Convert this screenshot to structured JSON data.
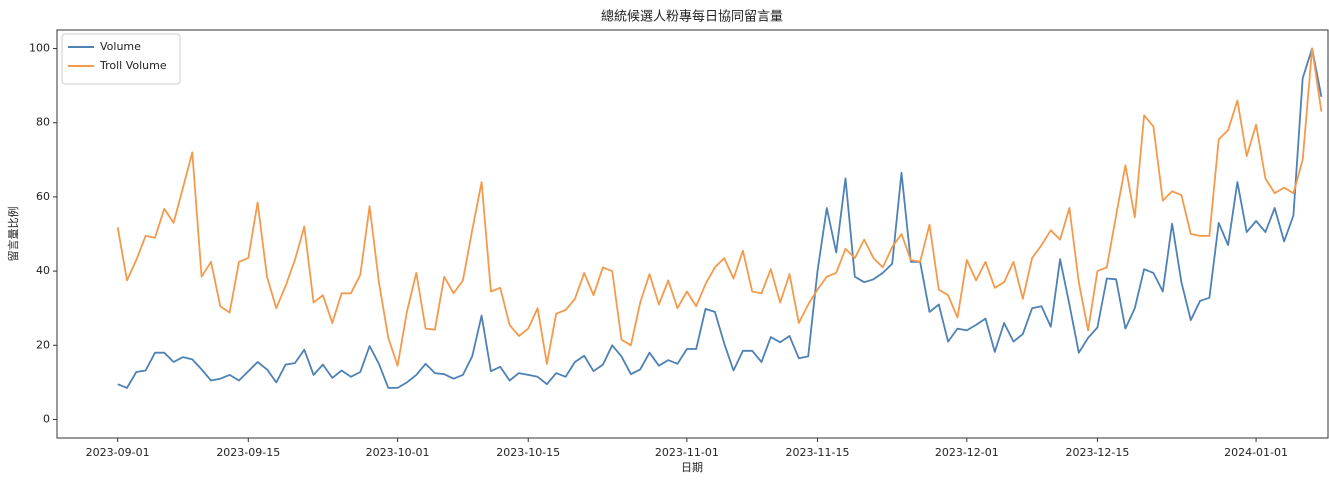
{
  "chart_data": {
    "type": "line",
    "title": "總統候選人粉專每日協同留言量",
    "xlabel": "日期",
    "ylabel": "留言量比例",
    "x": [
      "2023-09-01",
      "2023-09-02",
      "2023-09-03",
      "2023-09-04",
      "2023-09-05",
      "2023-09-06",
      "2023-09-07",
      "2023-09-08",
      "2023-09-09",
      "2023-09-10",
      "2023-09-11",
      "2023-09-12",
      "2023-09-13",
      "2023-09-14",
      "2023-09-15",
      "2023-09-16",
      "2023-09-17",
      "2023-09-18",
      "2023-09-19",
      "2023-09-20",
      "2023-09-21",
      "2023-09-22",
      "2023-09-23",
      "2023-09-24",
      "2023-09-25",
      "2023-09-26",
      "2023-09-27",
      "2023-09-28",
      "2023-09-29",
      "2023-09-30",
      "2023-10-01",
      "2023-10-02",
      "2023-10-03",
      "2023-10-04",
      "2023-10-05",
      "2023-10-06",
      "2023-10-07",
      "2023-10-08",
      "2023-10-09",
      "2023-10-10",
      "2023-10-11",
      "2023-10-12",
      "2023-10-13",
      "2023-10-14",
      "2023-10-15",
      "2023-10-16",
      "2023-10-17",
      "2023-10-18",
      "2023-10-19",
      "2023-10-20",
      "2023-10-21",
      "2023-10-22",
      "2023-10-23",
      "2023-10-24",
      "2023-10-25",
      "2023-10-26",
      "2023-10-27",
      "2023-10-28",
      "2023-10-29",
      "2023-10-30",
      "2023-10-31",
      "2023-11-01",
      "2023-11-02",
      "2023-11-03",
      "2023-11-04",
      "2023-11-05",
      "2023-11-06",
      "2023-11-07",
      "2023-11-08",
      "2023-11-09",
      "2023-11-10",
      "2023-11-11",
      "2023-11-12",
      "2023-11-13",
      "2023-11-14",
      "2023-11-15",
      "2023-11-16",
      "2023-11-17",
      "2023-11-18",
      "2023-11-19",
      "2023-11-20",
      "2023-11-21",
      "2023-11-22",
      "2023-11-23",
      "2023-11-24",
      "2023-11-25",
      "2023-11-26",
      "2023-11-27",
      "2023-11-28",
      "2023-11-29",
      "2023-11-30",
      "2023-12-01",
      "2023-12-02",
      "2023-12-03",
      "2023-12-04",
      "2023-12-05",
      "2023-12-06",
      "2023-12-07",
      "2023-12-08",
      "2023-12-09",
      "2023-12-10",
      "2023-12-11",
      "2023-12-12",
      "2023-12-13",
      "2023-12-14",
      "2023-12-15",
      "2023-12-16",
      "2023-12-17",
      "2023-12-18",
      "2023-12-19",
      "2023-12-20",
      "2023-12-21",
      "2023-12-22",
      "2023-12-23",
      "2023-12-24",
      "2023-12-25",
      "2023-12-26",
      "2023-12-27",
      "2023-12-28",
      "2023-12-29",
      "2023-12-30",
      "2023-12-31",
      "2024-01-01",
      "2024-01-02",
      "2024-01-03",
      "2024-01-04",
      "2024-01-05",
      "2024-01-06",
      "2024-01-07",
      "2024-01-08"
    ],
    "series": [
      {
        "name": "Volume",
        "color": "#4e81b4",
        "values": [
          9.5,
          8.5,
          12.8,
          13.2,
          18,
          18,
          15.5,
          16.8,
          16.2,
          13.5,
          10.5,
          11,
          12,
          10.5,
          13,
          15.5,
          13.5,
          10,
          14.8,
          15.2,
          18.8,
          12,
          14.8,
          11.2,
          13.2,
          11.5,
          12.8,
          19.8,
          15,
          8.5,
          8.5,
          10,
          12,
          15,
          12.5,
          12.2,
          11,
          12,
          17,
          28,
          13,
          14.2,
          10.5,
          12.5,
          12,
          11.5,
          9.5,
          12.5,
          11.5,
          15.5,
          17.2,
          13,
          14.8,
          20,
          17,
          12.2,
          13.5,
          18,
          14.5,
          16,
          15,
          19,
          19,
          29.8,
          29,
          20.5,
          13.2,
          18.5,
          18.5,
          15.5,
          22.2,
          20.8,
          22.5,
          16.5,
          17,
          40,
          57,
          45,
          65,
          38.5,
          37,
          37.8,
          39.5,
          42,
          66.5,
          42.5,
          42.5,
          29,
          31,
          21,
          24.5,
          24,
          25.5,
          27.2,
          18.2,
          26,
          21,
          23,
          30,
          30.5,
          25,
          43.2,
          31,
          18,
          22,
          24.8,
          38,
          37.8,
          24.5,
          30,
          40.5,
          39.5,
          34.5,
          52.8,
          37,
          26.8,
          32,
          32.8,
          53,
          47,
          64,
          50.5,
          53.5,
          50.5,
          57,
          48,
          55,
          92,
          100,
          87
        ]
      },
      {
        "name": "Troll Volume",
        "color": "#f39a4c",
        "values": [
          51.8,
          37.5,
          43,
          49.5,
          49,
          56.8,
          53,
          62.5,
          72,
          38.5,
          42.5,
          30.5,
          28.8,
          42.5,
          43.5,
          58.5,
          38.5,
          30,
          36,
          43,
          52,
          31.5,
          33.5,
          26,
          34,
          34,
          39,
          57.5,
          37,
          22,
          14.5,
          29,
          39.5,
          24.5,
          24.2,
          38.5,
          34,
          37.5,
          51,
          64,
          34.5,
          35.5,
          25.5,
          22.5,
          24.5,
          30,
          15,
          28.5,
          29.5,
          32.5,
          39.5,
          33.5,
          41,
          40,
          21.5,
          20,
          31.5,
          39.2,
          31,
          37.5,
          30,
          34.5,
          30.5,
          36.5,
          41,
          43.5,
          38,
          45.5,
          34.5,
          34,
          40.5,
          31.5,
          39.2,
          26,
          31,
          35,
          38.5,
          39.5,
          46,
          43.5,
          48.5,
          43.5,
          41,
          46.5,
          50,
          43,
          42.5,
          52.5,
          35,
          33.5,
          27.5,
          43,
          37.5,
          42.5,
          35.5,
          37,
          42.5,
          32.5,
          43.5,
          47,
          51,
          48.5,
          57,
          37,
          24,
          40,
          41,
          55,
          68.5,
          54.5,
          82,
          79,
          59,
          61.5,
          60.5,
          50,
          49.5,
          49.5,
          75.5,
          78,
          86,
          71,
          79.5,
          65,
          61,
          62.5,
          61,
          70,
          100,
          83
        ]
      }
    ],
    "xlim": [
      "2023-08-25T12:00",
      "2024-01-08T17:00"
    ],
    "xticks": [
      "2023-09-01",
      "2023-09-15",
      "2023-10-01",
      "2023-10-15",
      "2023-11-01",
      "2023-11-15",
      "2023-12-01",
      "2023-12-15",
      "2024-01-01"
    ],
    "ylim": [
      -5,
      105
    ],
    "yticks": [
      0,
      20,
      40,
      60,
      80,
      100
    ],
    "legend": "upper left"
  }
}
